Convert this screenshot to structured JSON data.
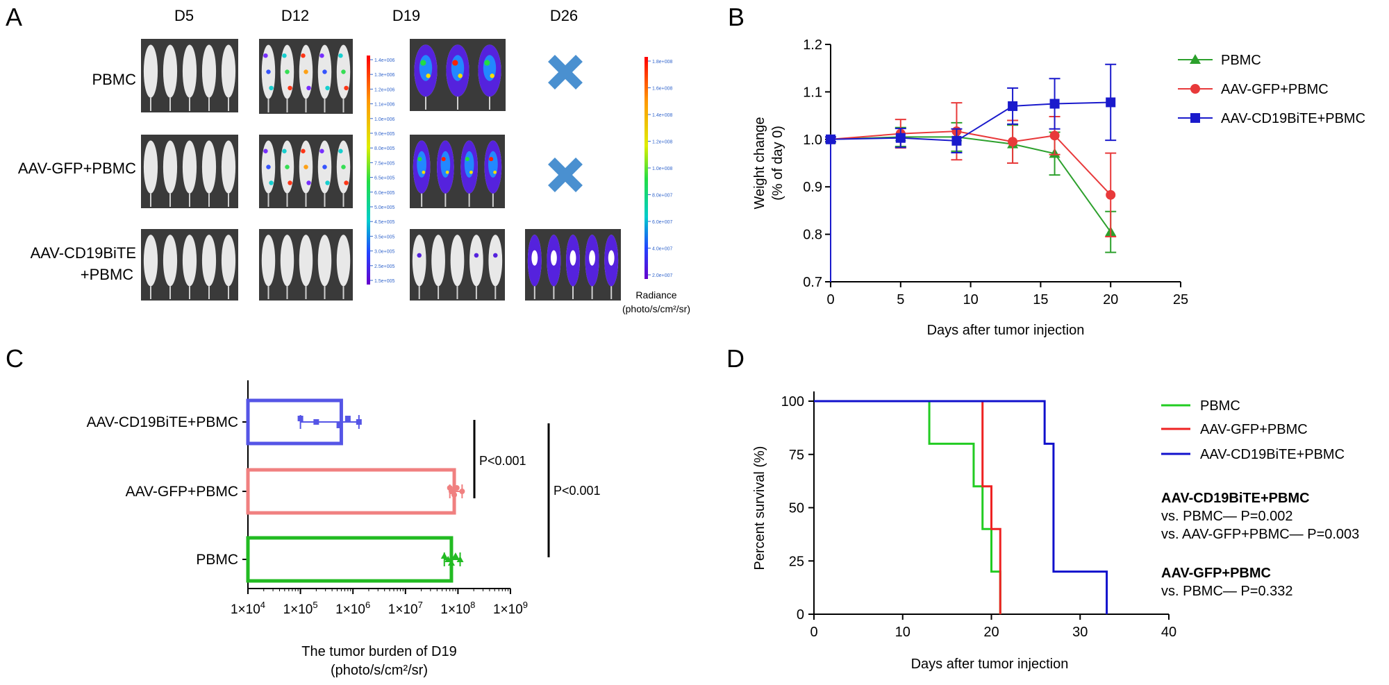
{
  "panels": {
    "A": "A",
    "B": "B",
    "C": "C",
    "D": "D"
  },
  "colors": {
    "pbmc": "#2ca02c",
    "gfp": "#e8393a",
    "cd19": "#1a1acc",
    "pbmc_c": "#22bb22",
    "gfp_c": "#f08080",
    "cd19_c": "#5555e6",
    "d_pbmc": "#22cc22",
    "d_gfp": "#ee2222",
    "d_cd19": "#1111cc",
    "cross": "#4a90d0"
  },
  "panel_a": {
    "days": [
      "D5",
      "D12",
      "D19",
      "D26"
    ],
    "groups": [
      "PBMC",
      "AAV-GFP+PBMC",
      "AAV-CD19BiTE",
      "+PBMC"
    ],
    "scale1_ticks": [
      "1.4e+006",
      "1.3e+006",
      "1.2e+006",
      "1.1e+006",
      "1.0e+006",
      "9.0e+005",
      "8.0e+005",
      "7.5e+005",
      "6.5e+005",
      "6.0e+005",
      "5.0e+005",
      "4.5e+005",
      "3.5e+005",
      "3.0e+005",
      "2.5e+005",
      "1.5e+005"
    ],
    "scale2_ticks": [
      "1.8e+008",
      "1.6e+008",
      "1.4e+008",
      "1.2e+008",
      "1.0e+008",
      "8.0e+007",
      "6.0e+007",
      "4.0e+007",
      "2.0e+007"
    ],
    "radiance_label": "Radiance",
    "radiance_units": "(photo/s/cm²/sr)"
  },
  "chart_data": [
    {
      "panel": "B",
      "type": "line",
      "xlabel": "Days after tumor injection",
      "ylabel": "Weight change",
      "ylabel2": "(% of day 0)",
      "xlim": [
        0,
        25
      ],
      "ylim": [
        0.7,
        1.2
      ],
      "xticks": [
        "0",
        "5",
        "10",
        "15",
        "20",
        "25"
      ],
      "yticks": [
        "0.7",
        "0.8",
        "0.9",
        "1.0",
        "1.1",
        "1.2"
      ],
      "x": [
        0,
        5,
        9,
        13,
        16,
        20
      ],
      "series": [
        {
          "name": "PBMC",
          "marker": "triangle",
          "values": [
            1.0,
            1.005,
            1.005,
            0.99,
            0.97,
            0.805
          ],
          "errors": [
            0.005,
            0.02,
            0.03,
            0.04,
            0.045,
            0.043
          ]
        },
        {
          "name": "AAV-GFP+PBMC",
          "marker": "circle",
          "values": [
            1.0,
            1.012,
            1.017,
            0.995,
            1.008,
            0.883
          ],
          "errors": [
            0.005,
            0.03,
            0.06,
            0.045,
            0.04,
            0.088
          ]
        },
        {
          "name": "AAV-CD19BiTE+PBMC",
          "marker": "square",
          "values": [
            1.0,
            1.003,
            0.997,
            1.07,
            1.075,
            1.078
          ],
          "errors": [
            0.005,
            0.02,
            0.025,
            0.038,
            0.053,
            0.08
          ]
        }
      ]
    },
    {
      "panel": "C",
      "type": "bar",
      "orientation": "horizontal",
      "scale": "log",
      "xlabel": "The tumor burden of D19",
      "xlabel2": "(photo/s/cm²/sr)",
      "xlim_exp": [
        4,
        9
      ],
      "xtick_mantissa": "1×10",
      "xtick_exps": [
        "4",
        "5",
        "6",
        "7",
        "8",
        "9"
      ],
      "categories": [
        "AAV-CD19BiTE+PBMC",
        "AAV-GFP+PBMC",
        "PBMC"
      ],
      "values": [
        600000,
        85000000,
        75000000
      ],
      "points": [
        [
          100000,
          200000,
          550000,
          800000,
          1300000
        ],
        [
          70000000,
          75000000,
          85000000,
          95000000,
          120000000
        ],
        [
          55000000,
          65000000,
          75000000,
          90000000,
          110000000
        ]
      ],
      "markers": [
        "square",
        "circle",
        "triangle"
      ],
      "annotations": [
        {
          "text": "P<0.001",
          "between": "AAV-CD19BiTE+PBMC vs AAV-GFP+PBMC"
        },
        {
          "text": "P<0.001",
          "between": "AAV-CD19BiTE+PBMC vs PBMC"
        }
      ]
    },
    {
      "panel": "D",
      "type": "line",
      "subtype": "kaplan-meier",
      "xlabel": "Days after tumor  injection",
      "ylabel": "Percent survival (%)",
      "xlim": [
        0,
        40
      ],
      "ylim": [
        0,
        100
      ],
      "xticks": [
        "0",
        "10",
        "20",
        "30",
        "40"
      ],
      "yticks": [
        "0",
        "25",
        "50",
        "75",
        "100"
      ],
      "series": [
        {
          "name": "PBMC",
          "steps": [
            [
              0,
              100
            ],
            [
              13,
              80
            ],
            [
              18,
              60
            ],
            [
              19,
              40
            ],
            [
              20,
              20
            ],
            [
              21,
              0
            ]
          ]
        },
        {
          "name": "AAV-GFP+PBMC",
          "steps": [
            [
              0,
              100
            ],
            [
              19,
              60
            ],
            [
              20,
              40
            ],
            [
              21,
              0
            ]
          ]
        },
        {
          "name": "AAV-CD19BiTE+PBMC",
          "steps": [
            [
              0,
              100
            ],
            [
              26,
              80
            ],
            [
              27,
              20
            ],
            [
              33,
              0
            ]
          ]
        }
      ],
      "stats": [
        {
          "title": "AAV-CD19BiTE+PBMC",
          "lines": [
            "vs. PBMC— P=0.002",
            "vs. AAV-GFP+PBMC— P=0.003"
          ]
        },
        {
          "title": "AAV-GFP+PBMC",
          "lines": [
            "vs. PBMC— P=0.332"
          ]
        }
      ]
    }
  ]
}
